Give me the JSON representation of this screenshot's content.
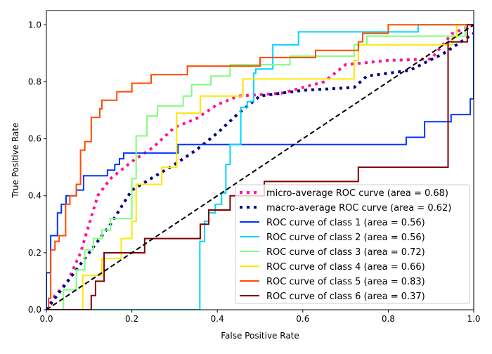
{
  "chart_data": {
    "type": "line",
    "title": "",
    "xlabel": "False Positive Rate",
    "ylabel": "True Positive Rate",
    "xlim": [
      0,
      1
    ],
    "ylim": [
      0,
      1.05
    ],
    "xticks": [
      "0.0",
      "0.2",
      "0.4",
      "0.6",
      "0.8",
      "1.0"
    ],
    "yticks": [
      "0.0",
      "0.2",
      "0.4",
      "0.6",
      "0.8",
      "1.0"
    ],
    "legend_position": "lower-right",
    "diagonal": {
      "color": "#000000",
      "style": "dashed"
    },
    "series": [
      {
        "name": "micro-average ROC curve (area = 0.68)",
        "color": "#ff1493",
        "style": "dotted",
        "step": false,
        "points": [
          [
            0,
            0
          ],
          [
            0.02,
            0.05
          ],
          [
            0.05,
            0.1
          ],
          [
            0.08,
            0.2
          ],
          [
            0.1,
            0.3
          ],
          [
            0.12,
            0.4
          ],
          [
            0.15,
            0.46
          ],
          [
            0.2,
            0.52
          ],
          [
            0.25,
            0.57
          ],
          [
            0.3,
            0.64
          ],
          [
            0.35,
            0.67
          ],
          [
            0.4,
            0.72
          ],
          [
            0.45,
            0.75
          ],
          [
            0.55,
            0.76
          ],
          [
            0.65,
            0.8
          ],
          [
            0.7,
            0.86
          ],
          [
            0.8,
            0.875
          ],
          [
            0.9,
            0.88
          ],
          [
            0.95,
            0.97
          ],
          [
            1,
            1
          ]
        ]
      },
      {
        "name": "macro-average ROC curve (area = 0.62)",
        "color": "#000080",
        "style": "dotted",
        "step": false,
        "points": [
          [
            0,
            0
          ],
          [
            0.05,
            0.1
          ],
          [
            0.1,
            0.2
          ],
          [
            0.15,
            0.3
          ],
          [
            0.2,
            0.42
          ],
          [
            0.3,
            0.51
          ],
          [
            0.35,
            0.56
          ],
          [
            0.4,
            0.62
          ],
          [
            0.45,
            0.69
          ],
          [
            0.5,
            0.75
          ],
          [
            0.6,
            0.77
          ],
          [
            0.72,
            0.78
          ],
          [
            0.75,
            0.82
          ],
          [
            0.85,
            0.84
          ],
          [
            0.93,
            0.9
          ],
          [
            1,
            0.97
          ]
        ]
      },
      {
        "name": "ROC curve of class 1 (area = 0.56)",
        "color": "#0033ff",
        "style": "solid",
        "step": true,
        "points": [
          [
            0,
            0
          ],
          [
            0,
            0.13
          ],
          [
            0.01,
            0.26
          ],
          [
            0.026,
            0.34
          ],
          [
            0.035,
            0.37
          ],
          [
            0.046,
            0.4
          ],
          [
            0.07,
            0.42
          ],
          [
            0.087,
            0.47
          ],
          [
            0.143,
            0.49
          ],
          [
            0.16,
            0.51
          ],
          [
            0.171,
            0.53
          ],
          [
            0.181,
            0.55
          ],
          [
            0.308,
            0.58
          ],
          [
            0.842,
            0.605
          ],
          [
            0.885,
            0.66
          ],
          [
            0.947,
            0.685
          ],
          [
            0.992,
            0.74
          ],
          [
            1,
            1
          ]
        ]
      },
      {
        "name": "ROC curve of class 2 (area = 0.56)",
        "color": "#00d4ff",
        "style": "solid",
        "step": true,
        "points": [
          [
            0,
            0
          ],
          [
            0.359,
            0.24
          ],
          [
            0.37,
            0.31
          ],
          [
            0.38,
            0.34
          ],
          [
            0.395,
            0.37
          ],
          [
            0.41,
            0.41
          ],
          [
            0.42,
            0.51
          ],
          [
            0.43,
            0.58
          ],
          [
            0.455,
            0.71
          ],
          [
            0.47,
            0.73
          ],
          [
            0.485,
            0.83
          ],
          [
            0.49,
            0.845
          ],
          [
            0.53,
            0.93
          ],
          [
            0.59,
            0.975
          ],
          [
            0.87,
            1.0
          ],
          [
            1,
            1
          ]
        ]
      },
      {
        "name": "ROC curve of class 3 (area = 0.72)",
        "color": "#7dff7a",
        "style": "solid",
        "step": true,
        "points": [
          [
            0,
            0
          ],
          [
            0.04,
            0.07
          ],
          [
            0.07,
            0.14
          ],
          [
            0.09,
            0.21
          ],
          [
            0.11,
            0.25
          ],
          [
            0.13,
            0.28
          ],
          [
            0.15,
            0.32
          ],
          [
            0.2,
            0.46
          ],
          [
            0.21,
            0.61
          ],
          [
            0.235,
            0.68
          ],
          [
            0.26,
            0.715
          ],
          [
            0.32,
            0.75
          ],
          [
            0.34,
            0.79
          ],
          [
            0.385,
            0.82
          ],
          [
            0.43,
            0.86
          ],
          [
            0.57,
            0.89
          ],
          [
            0.72,
            0.93
          ],
          [
            0.75,
            0.96
          ],
          [
            0.98,
            1.0
          ],
          [
            1,
            1
          ]
        ]
      },
      {
        "name": "ROC curve of class 4 (area = 0.66)",
        "color": "#ffe600",
        "style": "solid",
        "step": true,
        "points": [
          [
            0,
            0
          ],
          [
            0.085,
            0.12
          ],
          [
            0.13,
            0.18
          ],
          [
            0.175,
            0.25
          ],
          [
            0.2,
            0.31
          ],
          [
            0.21,
            0.44
          ],
          [
            0.27,
            0.5
          ],
          [
            0.305,
            0.69
          ],
          [
            0.36,
            0.75
          ],
          [
            0.46,
            0.81
          ],
          [
            0.72,
            0.875
          ],
          [
            0.73,
            0.93
          ],
          [
            0.95,
            0.955
          ],
          [
            0.96,
            1.0
          ],
          [
            1,
            1
          ]
        ]
      },
      {
        "name": "ROC curve of class 5 (area = 0.83)",
        "color": "#ff4a00",
        "style": "solid",
        "step": true,
        "points": [
          [
            0,
            0
          ],
          [
            0.005,
            0.04
          ],
          [
            0.01,
            0.21
          ],
          [
            0.02,
            0.24
          ],
          [
            0.03,
            0.26
          ],
          [
            0.045,
            0.37
          ],
          [
            0.055,
            0.4
          ],
          [
            0.07,
            0.44
          ],
          [
            0.08,
            0.56
          ],
          [
            0.09,
            0.59
          ],
          [
            0.105,
            0.675
          ],
          [
            0.125,
            0.705
          ],
          [
            0.13,
            0.735
          ],
          [
            0.165,
            0.765
          ],
          [
            0.2,
            0.795
          ],
          [
            0.245,
            0.825
          ],
          [
            0.33,
            0.855
          ],
          [
            0.5,
            0.885
          ],
          [
            0.63,
            0.91
          ],
          [
            0.73,
            0.94
          ],
          [
            0.74,
            0.97
          ],
          [
            0.8,
            1.0
          ],
          [
            1,
            1
          ]
        ]
      },
      {
        "name": "ROC curve of class 6 (area = 0.37)",
        "color": "#800000",
        "style": "solid",
        "step": true,
        "points": [
          [
            0,
            0
          ],
          [
            0.105,
            0.05
          ],
          [
            0.115,
            0.1
          ],
          [
            0.135,
            0.2
          ],
          [
            0.23,
            0.25
          ],
          [
            0.36,
            0.3
          ],
          [
            0.38,
            0.35
          ],
          [
            0.43,
            0.4
          ],
          [
            0.51,
            0.45
          ],
          [
            0.73,
            0.5
          ],
          [
            0.94,
            0.94
          ],
          [
            0.985,
            1.0
          ],
          [
            1,
            1
          ]
        ]
      }
    ]
  }
}
